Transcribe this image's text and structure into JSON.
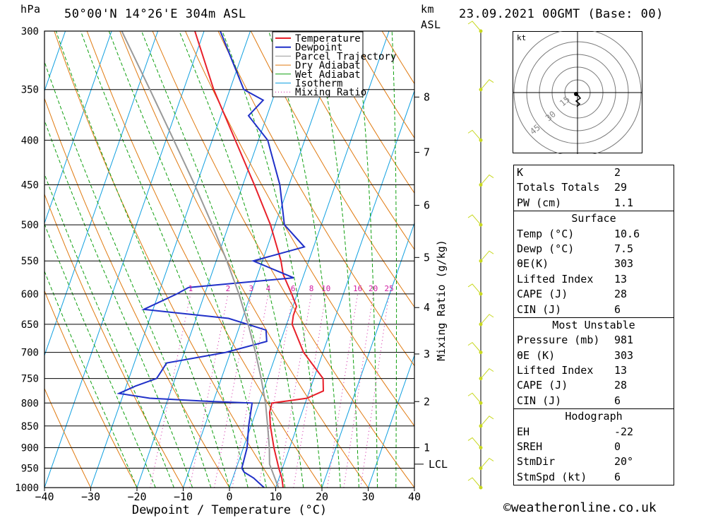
{
  "header": {
    "location": "50°00'N 14°26'E 304m ASL",
    "date": "23.09.2021 00GMT (Base: 00)",
    "left_unit": "hPa",
    "right_unit_line1": "km",
    "right_unit_line2": "ASL"
  },
  "chart_data": {
    "type": "skew-t",
    "title": "50°00'N 14°26'E 304m ASL",
    "xlabel": "Dewpoint / Temperature (°C)",
    "ylabel": "hPa",
    "ylabel_right": "Mixing Ratio (g/kg)",
    "x_ticks": [
      -40,
      -30,
      -20,
      -10,
      0,
      10,
      20,
      30,
      40
    ],
    "xlim": [
      -40,
      40
    ],
    "pressure_levels": [
      300,
      350,
      400,
      450,
      500,
      550,
      600,
      650,
      700,
      750,
      800,
      850,
      900,
      950,
      1000
    ],
    "km_ticks": [
      {
        "km": "8",
        "p": 357
      },
      {
        "km": "7",
        "p": 413
      },
      {
        "km": "6",
        "p": 475
      },
      {
        "km": "5",
        "p": 545
      },
      {
        "km": "4",
        "p": 622
      },
      {
        "km": "3",
        "p": 703
      },
      {
        "km": "2",
        "p": 797
      },
      {
        "km": "1",
        "p": 900
      }
    ],
    "lcl": {
      "label": "LCL",
      "p": 940
    },
    "mixing_ratio_labels": [
      "1",
      "2",
      "3",
      "4",
      "6",
      "8",
      "10",
      "16",
      "20",
      "25"
    ],
    "mixing_ratio_values": [
      1,
      2,
      3,
      4,
      6,
      8,
      10,
      16,
      20,
      25
    ],
    "legend": [
      "Temperature",
      "Dewpoint",
      "Parcel Trajectory",
      "Dry Adiabat",
      "Wet Adiabat",
      "Isotherm",
      "Mixing Ratio"
    ],
    "series": [
      {
        "name": "Temperature",
        "color": "#e8202a",
        "points": [
          [
            1000,
            11.6
          ],
          [
            975,
            10.6
          ],
          [
            950,
            9.2
          ],
          [
            900,
            6.6
          ],
          [
            850,
            4.2
          ],
          [
            820,
            3.0
          ],
          [
            800,
            2.8
          ],
          [
            795,
            6.5
          ],
          [
            790,
            10.0
          ],
          [
            775,
            13.0
          ],
          [
            750,
            12.0
          ],
          [
            700,
            5.8
          ],
          [
            650,
            1.2
          ],
          [
            635,
            0.8
          ],
          [
            620,
            0.8
          ],
          [
            600,
            -1.2
          ],
          [
            570,
            -4.5
          ],
          [
            550,
            -6.0
          ],
          [
            500,
            -11.0
          ],
          [
            450,
            -17.5
          ],
          [
            400,
            -25.0
          ],
          [
            350,
            -33.5
          ],
          [
            300,
            -42.0
          ]
        ]
      },
      {
        "name": "Dewpoint",
        "color": "#2030c8",
        "points": [
          [
            1000,
            7.5
          ],
          [
            975,
            4.5
          ],
          [
            960,
            2.0
          ],
          [
            950,
            1.2
          ],
          [
            900,
            0.8
          ],
          [
            850,
            -0.5
          ],
          [
            800,
            -1.5
          ],
          [
            797,
            -10.0
          ],
          [
            790,
            -24.0
          ],
          [
            780,
            -31.0
          ],
          [
            765,
            -28.0
          ],
          [
            750,
            -24.0
          ],
          [
            735,
            -23.5
          ],
          [
            720,
            -23.0
          ],
          [
            700,
            -11.0
          ],
          [
            680,
            -3.0
          ],
          [
            660,
            -4.0
          ],
          [
            640,
            -13.0
          ],
          [
            625,
            -32.0
          ],
          [
            600,
            -26.0
          ],
          [
            590,
            -24.0
          ],
          [
            575,
            -2.0
          ],
          [
            550,
            -12.0
          ],
          [
            530,
            -2.0
          ],
          [
            500,
            -8.0
          ],
          [
            450,
            -12.0
          ],
          [
            400,
            -18.0
          ],
          [
            375,
            -24.0
          ],
          [
            360,
            -22.0
          ],
          [
            350,
            -27.0
          ],
          [
            300,
            -36.5
          ]
        ]
      },
      {
        "name": "Parcel Trajectory",
        "color": "#999999",
        "points": [
          [
            1000,
            10.6
          ],
          [
            940,
            6.9
          ],
          [
            900,
            5.6
          ],
          [
            850,
            3.6
          ],
          [
            800,
            1.4
          ],
          [
            750,
            -1.4
          ],
          [
            700,
            -4.6
          ],
          [
            650,
            -8.3
          ],
          [
            600,
            -12.6
          ],
          [
            550,
            -17.7
          ],
          [
            500,
            -23.6
          ],
          [
            450,
            -30.4
          ],
          [
            400,
            -38.3
          ],
          [
            350,
            -47.3
          ],
          [
            300,
            -57.8
          ]
        ]
      }
    ],
    "wind_levels": [
      300,
      350,
      400,
      450,
      500,
      550,
      600,
      650,
      700,
      750,
      800,
      850,
      900,
      950,
      1000
    ]
  },
  "hodograph": {
    "unit": "kt",
    "rings": [
      "15",
      "30",
      "45"
    ]
  },
  "indices": [
    {
      "label": "K",
      "value": "2"
    },
    {
      "label": "Totals Totals",
      "value": "29"
    },
    {
      "label": "PW (cm)",
      "value": "1.1"
    }
  ],
  "surface": {
    "title": "Surface",
    "rows": [
      {
        "label": "Temp (°C)",
        "value": "10.6"
      },
      {
        "label": "Dewp (°C)",
        "value": "7.5"
      },
      {
        "label": "θE(K)",
        "value": "303"
      },
      {
        "label": "Lifted Index",
        "value": "13"
      },
      {
        "label": "CAPE (J)",
        "value": "28"
      },
      {
        "label": "CIN (J)",
        "value": "6"
      }
    ]
  },
  "most_unstable": {
    "title": "Most Unstable",
    "rows": [
      {
        "label": "Pressure (mb)",
        "value": "981"
      },
      {
        "label": "θE (K)",
        "value": "303"
      },
      {
        "label": "Lifted Index",
        "value": "13"
      },
      {
        "label": "CAPE (J)",
        "value": "28"
      },
      {
        "label": "CIN (J)",
        "value": "6"
      }
    ]
  },
  "hodograph_table": {
    "title": "Hodograph",
    "rows": [
      {
        "label": "EH",
        "value": "-22"
      },
      {
        "label": "SREH",
        "value": "0"
      },
      {
        "label": "StmDir",
        "value": "20°"
      },
      {
        "label": "StmSpd (kt)",
        "value": "6"
      }
    ]
  },
  "copyright": "©weatheronline.co.uk",
  "colors": {
    "temperature": "#e8202a",
    "dewpoint": "#2030c8",
    "parcel": "#999999",
    "dry_adiabat": "#e07a10",
    "wet_adiabat": "#10a010",
    "isotherm": "#10a0e0",
    "mixing_ratio": "#d01aa0",
    "wind": "#c8d820"
  }
}
